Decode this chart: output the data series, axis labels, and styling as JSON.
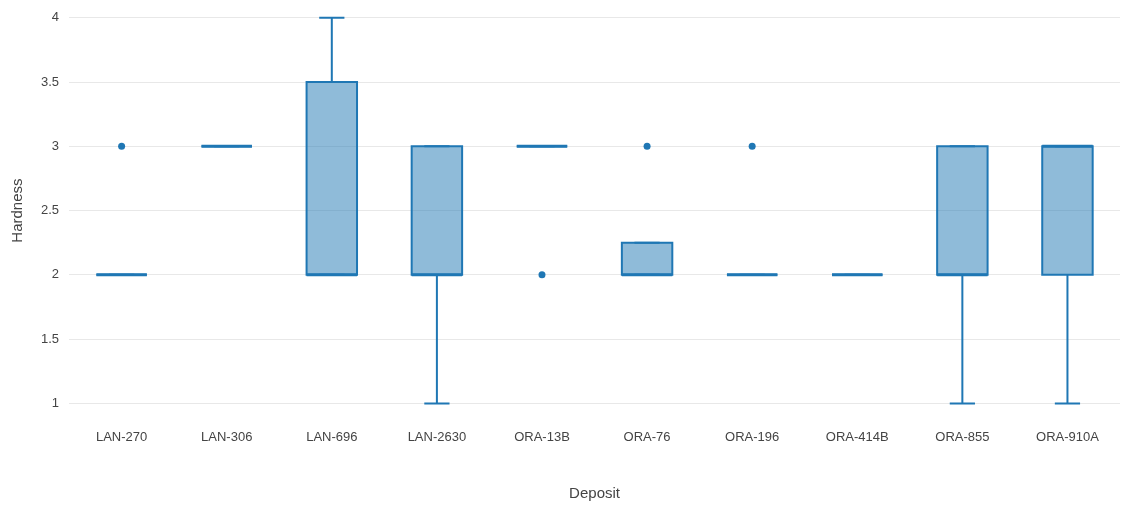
{
  "chart_data": {
    "type": "box",
    "xlabel": "Deposit",
    "ylabel": "Hardness",
    "categories": [
      "LAN-270",
      "LAN-306",
      "LAN-696",
      "LAN-2630",
      "ORA-13B",
      "ORA-76",
      "ORA-196",
      "ORA-414B",
      "ORA-855",
      "ORA-910A"
    ],
    "series": [
      {
        "color": "#1f77b4",
        "boxes": [
          {
            "low": 2,
            "q1": 2,
            "median": 2,
            "q3": 2,
            "high": 2,
            "outliers": [
              3
            ]
          },
          {
            "low": 3,
            "q1": 3,
            "median": 3,
            "q3": 3,
            "high": 3
          },
          {
            "low": 2,
            "q1": 2,
            "median": 2,
            "q3": 3.5,
            "high": 4
          },
          {
            "low": 1,
            "q1": 2,
            "median": 2,
            "q3": 3,
            "high": 3
          },
          {
            "low": 3,
            "q1": 3,
            "median": 3,
            "q3": 3,
            "high": 3,
            "outliers": [
              2
            ]
          },
          {
            "low": 2,
            "q1": 2,
            "median": 2,
            "q3": 2.25,
            "high": 2.25,
            "outliers": [
              3
            ]
          },
          {
            "low": 2,
            "q1": 2,
            "median": 2,
            "q3": 2,
            "high": 2,
            "outliers": [
              3
            ]
          },
          {
            "low": 2,
            "q1": 2,
            "median": 2,
            "q3": 2,
            "high": 2
          },
          {
            "low": 1,
            "q1": 2,
            "median": 2,
            "q3": 3,
            "high": 3
          },
          {
            "low": 1,
            "q1": 2,
            "median": 3,
            "q3": 3,
            "high": 3
          }
        ]
      }
    ],
    "ylim": [
      1,
      4
    ],
    "yticks": [
      1,
      1.5,
      2,
      2.5,
      3,
      3.5,
      4
    ],
    "grid": "y"
  }
}
